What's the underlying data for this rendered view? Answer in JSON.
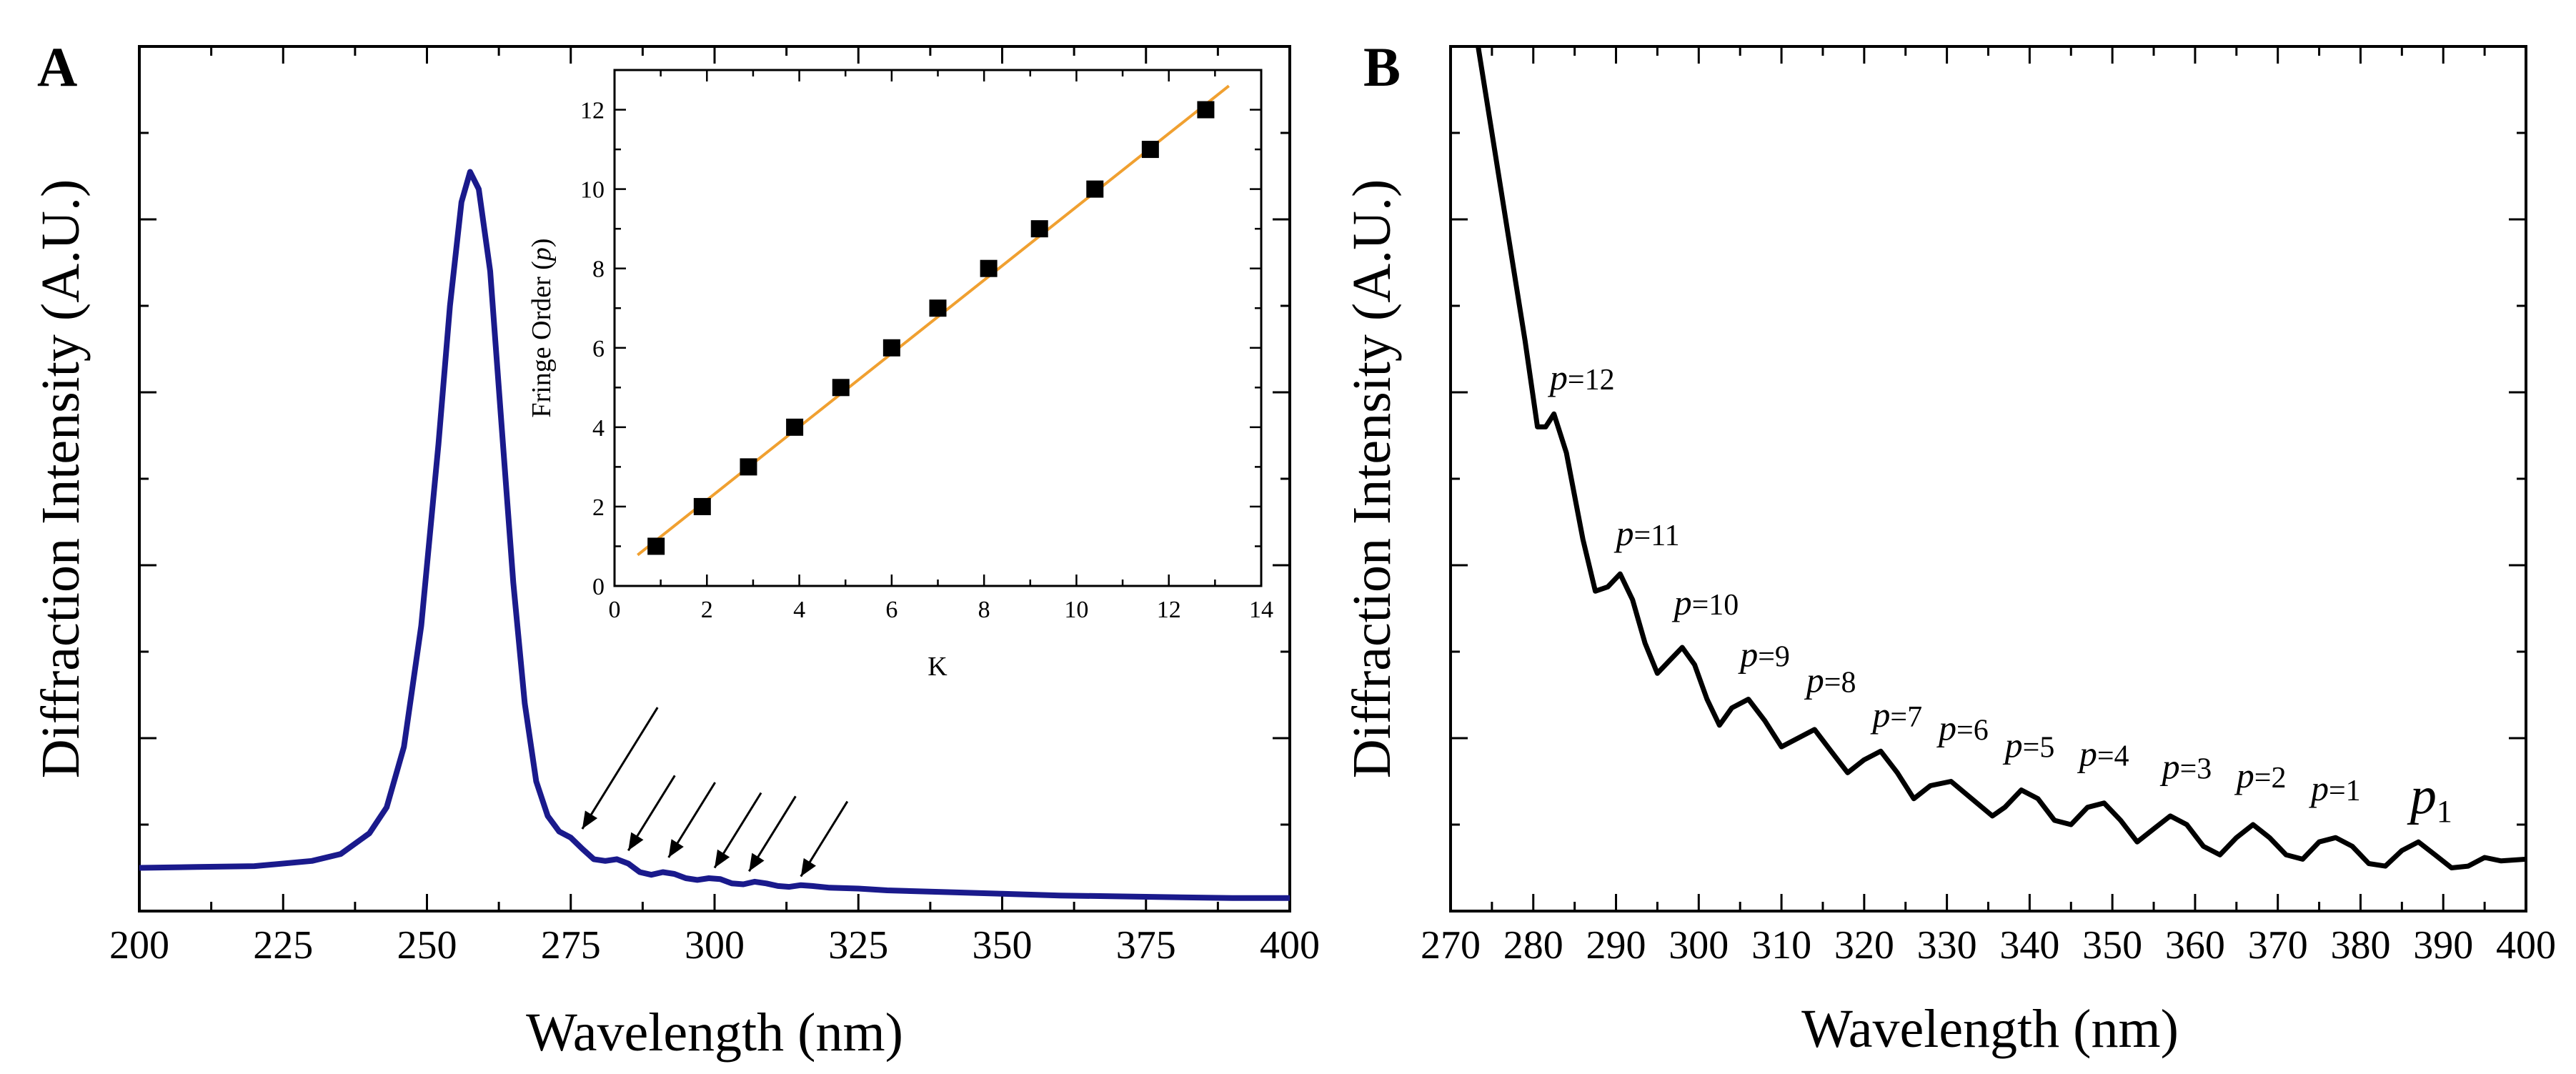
{
  "chart_data": [
    {
      "panel_label": "A",
      "type": "line",
      "xlabel": "Wavelength (nm)",
      "ylabel": "Diffraction Intensity (A.U.)",
      "xlim": [
        200,
        400
      ],
      "ylim": [
        0,
        1
      ],
      "x_ticks": [
        200,
        225,
        250,
        275,
        300,
        325,
        350,
        375,
        400
      ],
      "y_tick_labels_shown": false,
      "line_color": "#1a1a8c",
      "series": [
        {
          "x": [
            200,
            210,
            220,
            230,
            235,
            240,
            243,
            246,
            249,
            252,
            254,
            256,
            257.5,
            259,
            261,
            263,
            265,
            267,
            269,
            271,
            273,
            275,
            277,
            279,
            281,
            283,
            285,
            287,
            289,
            291,
            293,
            295,
            297,
            299,
            301,
            303,
            305,
            307,
            309,
            311,
            313,
            315,
            317,
            320,
            325,
            330,
            340,
            350,
            360,
            370,
            380,
            390,
            400
          ],
          "y": [
            0.05,
            0.051,
            0.052,
            0.058,
            0.066,
            0.09,
            0.12,
            0.19,
            0.33,
            0.54,
            0.7,
            0.82,
            0.855,
            0.835,
            0.74,
            0.56,
            0.38,
            0.24,
            0.15,
            0.11,
            0.092,
            0.085,
            0.072,
            0.06,
            0.058,
            0.06,
            0.055,
            0.045,
            0.042,
            0.045,
            0.043,
            0.038,
            0.036,
            0.038,
            0.037,
            0.032,
            0.031,
            0.034,
            0.032,
            0.029,
            0.028,
            0.03,
            0.029,
            0.027,
            0.026,
            0.024,
            0.022,
            0.02,
            0.018,
            0.017,
            0.016,
            0.015,
            0.015
          ]
        }
      ],
      "arrows_count": 6,
      "inset": {
        "type": "scatter",
        "xlabel": "K",
        "ylabel": "Fringe Order (p)",
        "ylabel_parts": [
          "Fringe Order (",
          "p",
          ")"
        ],
        "xlim": [
          0,
          14
        ],
        "ylim": [
          0,
          13
        ],
        "x_ticks": [
          0,
          2,
          4,
          6,
          8,
          10,
          12,
          14
        ],
        "y_ticks": [
          0,
          2,
          4,
          6,
          8,
          10,
          12
        ],
        "marker_color": "#000000",
        "fit_line_color": "#f0a030",
        "points": {
          "x": [
            0.9,
            1.9,
            2.9,
            3.9,
            4.9,
            6.0,
            7.0,
            8.1,
            9.2,
            10.4,
            11.6,
            12.8
          ],
          "y": [
            1,
            2,
            3,
            4,
            5,
            6,
            7,
            8,
            9,
            10,
            11,
            12
          ]
        },
        "fit_line": {
          "x": [
            0.5,
            13.3
          ],
          "y": [
            0.78,
            12.6
          ]
        }
      }
    },
    {
      "panel_label": "B",
      "type": "line",
      "xlabel": "Wavelength (nm)",
      "ylabel": "Diffraction Intensity (A.U.)",
      "xlim": [
        270,
        400
      ],
      "ylim": [
        0,
        1
      ],
      "x_ticks": [
        270,
        280,
        290,
        300,
        310,
        320,
        330,
        340,
        350,
        360,
        370,
        380,
        390,
        400
      ],
      "y_tick_labels_shown": false,
      "line_color": "#000000",
      "series": [
        {
          "x": [
            273,
            275,
            277,
            279,
            280.5,
            281.5,
            282.5,
            284,
            286,
            287.5,
            289,
            290.5,
            292,
            293.5,
            295,
            296.5,
            298,
            299.5,
            301,
            302.5,
            304,
            306,
            308,
            310,
            312,
            314,
            316,
            318,
            320,
            322,
            324,
            326,
            328,
            330.5,
            333,
            335.5,
            337,
            339,
            341,
            343,
            345,
            347,
            349,
            351,
            353,
            355,
            357,
            359,
            361,
            363,
            365,
            367,
            369,
            371,
            373,
            375,
            377,
            379,
            381,
            383,
            385,
            387,
            389,
            391,
            393,
            395,
            397,
            400
          ],
          "y": [
            1.02,
            0.9,
            0.78,
            0.66,
            0.56,
            0.56,
            0.575,
            0.53,
            0.43,
            0.37,
            0.375,
            0.39,
            0.36,
            0.31,
            0.275,
            0.29,
            0.305,
            0.285,
            0.245,
            0.215,
            0.235,
            0.245,
            0.22,
            0.19,
            0.2,
            0.21,
            0.185,
            0.16,
            0.175,
            0.185,
            0.16,
            0.13,
            0.145,
            0.15,
            0.13,
            0.11,
            0.12,
            0.14,
            0.13,
            0.105,
            0.1,
            0.12,
            0.125,
            0.105,
            0.08,
            0.095,
            0.11,
            0.1,
            0.075,
            0.065,
            0.085,
            0.1,
            0.085,
            0.065,
            0.06,
            0.08,
            0.085,
            0.075,
            0.055,
            0.052,
            0.07,
            0.08,
            0.065,
            0.05,
            0.052,
            0.062,
            0.058,
            0.06
          ]
        }
      ],
      "annotations": [
        {
          "p": "p",
          "text": "=12",
          "x": 282,
          "y": 0.58
        },
        {
          "p": "p",
          "text": "=11",
          "x": 290,
          "y": 0.4
        },
        {
          "p": "p",
          "text": "=10",
          "x": 297,
          "y": 0.32
        },
        {
          "p": "p",
          "text": "=9",
          "x": 305,
          "y": 0.26
        },
        {
          "p": "p",
          "text": "=8",
          "x": 313,
          "y": 0.23
        },
        {
          "p": "p",
          "text": "=7",
          "x": 321,
          "y": 0.19
        },
        {
          "p": "p",
          "text": "=6",
          "x": 329,
          "y": 0.175
        },
        {
          "p": "p",
          "text": "=5",
          "x": 337,
          "y": 0.155
        },
        {
          "p": "p",
          "text": "=4",
          "x": 346,
          "y": 0.145
        },
        {
          "p": "p",
          "text": "=3",
          "x": 356,
          "y": 0.13
        },
        {
          "p": "p",
          "text": "=2",
          "x": 365,
          "y": 0.12
        },
        {
          "p": "p",
          "text": "=1",
          "x": 374,
          "y": 0.105
        },
        {
          "p": "p",
          "text": "1",
          "x": 386,
          "y": 0.09,
          "style": "subscript"
        }
      ]
    }
  ]
}
